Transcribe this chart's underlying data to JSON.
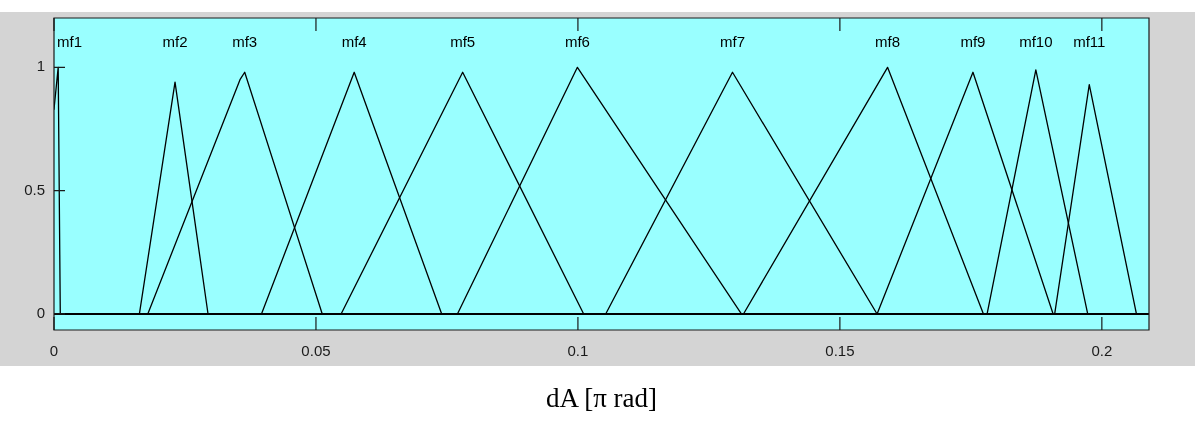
{
  "chart_data": {
    "type": "line",
    "xlabel": "dA [π rad]",
    "xlim": [
      0,
      0.209
    ],
    "xticks": [
      0,
      0.05,
      0.1,
      0.15,
      0.2
    ],
    "ylim": [
      -0.065,
      1.2
    ],
    "yticks": [
      0,
      0.5,
      1
    ],
    "grid": false,
    "legend": false,
    "marker": "none",
    "line_style": "solid",
    "series": [
      {
        "name": "mf1",
        "color": "#000000",
        "x": [
          0,
          0.0008,
          0.0012,
          0.209
        ],
        "values": [
          0.83,
          1,
          0,
          0
        ]
      },
      {
        "name": "mf2",
        "color": "#000000",
        "x": [
          0,
          0.0163,
          0.0231,
          0.0294,
          0.209
        ],
        "values": [
          0,
          0,
          0.94,
          0,
          0
        ]
      },
      {
        "name": "mf3",
        "color": "#000000",
        "x": [
          0,
          0.0179,
          0.0355,
          0.0364,
          0.0512,
          0.209
        ],
        "values": [
          0,
          0,
          0.95,
          0.98,
          0,
          0
        ]
      },
      {
        "name": "mf4",
        "color": "#000000",
        "x": [
          0,
          0.0396,
          0.0573,
          0.074,
          0.209
        ],
        "values": [
          0,
          0,
          0.98,
          0,
          0
        ]
      },
      {
        "name": "mf5",
        "color": "#000000",
        "x": [
          0,
          0.0548,
          0.078,
          0.1011,
          0.209
        ],
        "values": [
          0,
          0,
          0.98,
          0,
          0
        ]
      },
      {
        "name": "mf6",
        "color": "#000000",
        "x": [
          0,
          0.077,
          0.0999,
          0.1312,
          0.209
        ],
        "values": [
          0,
          0,
          1,
          0,
          0
        ]
      },
      {
        "name": "mf7",
        "color": "#000000",
        "x": [
          0,
          0.1053,
          0.1295,
          0.1571,
          0.209
        ],
        "values": [
          0,
          0,
          0.98,
          0,
          0
        ]
      },
      {
        "name": "mf8",
        "color": "#000000",
        "x": [
          0,
          0.1316,
          0.1591,
          0.1774,
          0.209
        ],
        "values": [
          0,
          0,
          1,
          0,
          0
        ]
      },
      {
        "name": "mf9",
        "color": "#000000",
        "x": [
          0,
          0.1571,
          0.1754,
          0.1907,
          0.209
        ],
        "values": [
          0,
          0,
          0.98,
          0,
          0
        ]
      },
      {
        "name": "mf10",
        "color": "#000000",
        "x": [
          0,
          0.1781,
          0.1874,
          0.1973,
          0.209
        ],
        "values": [
          0,
          0,
          0.99,
          0,
          0
        ]
      },
      {
        "name": "mf11",
        "color": "#000000",
        "x": [
          0,
          0.191,
          0.1976,
          0.2066,
          0.209
        ],
        "values": [
          0,
          0,
          0.93,
          0,
          0
        ]
      }
    ]
  }
}
